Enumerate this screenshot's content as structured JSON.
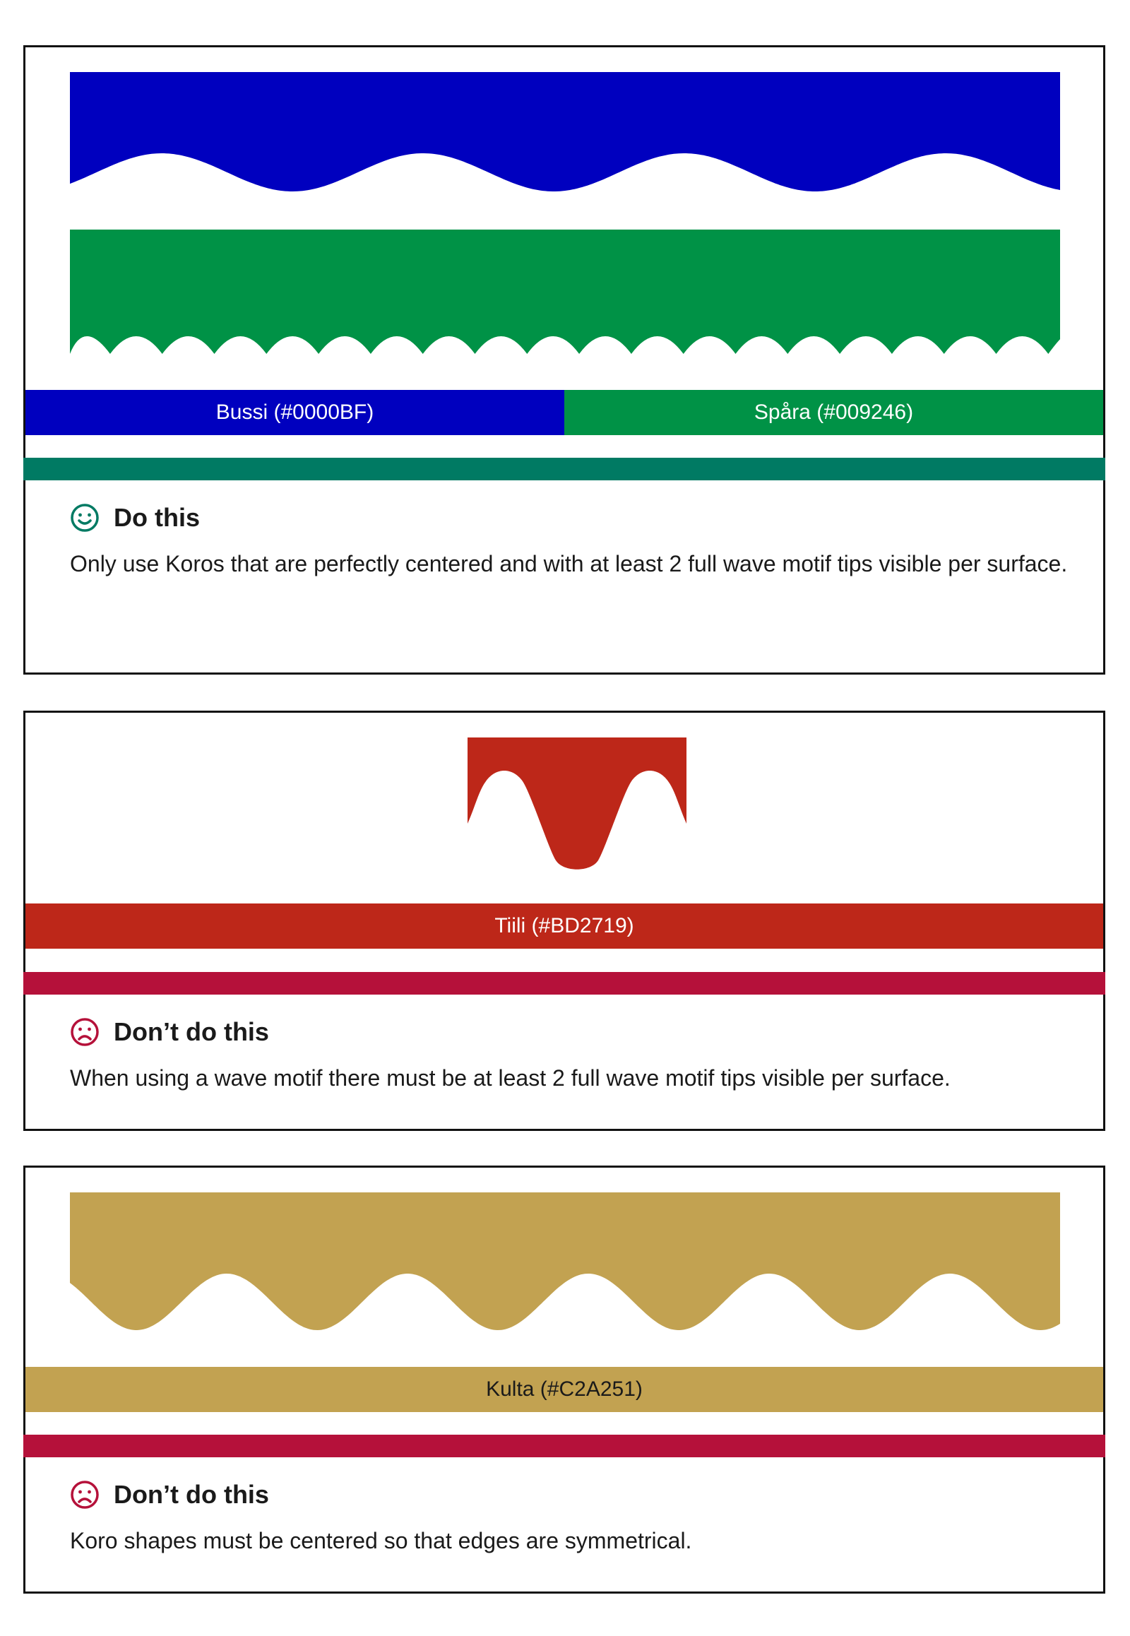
{
  "colors": {
    "bussi": "#0000BF",
    "spara": "#009246",
    "tiili": "#BD2719",
    "kulta": "#C2A251",
    "do_accent": "#007A63",
    "dont_accent": "#B5113A",
    "border": "#111111"
  },
  "cards": [
    {
      "verdict": "Do this",
      "icon": "smiley-icon",
      "description": "Only use Koros that are perfectly centered and with at least 2 full wave motif tips visible per surface.",
      "swatches": [
        "Bussi (#0000BF)",
        "Spåra (#009246)"
      ]
    },
    {
      "verdict": "Don’t do this",
      "icon": "frown-icon",
      "description": "When using a wave motif there must be at least 2 full wave motif tips visible per surface.",
      "swatches": [
        "Tiili (#BD2719)"
      ]
    },
    {
      "verdict": "Don’t do this",
      "icon": "frown-icon",
      "description": "Koro shapes must be centered so that edges are symmetrical.",
      "swatches": [
        "Kulta (#C2A251)"
      ]
    }
  ]
}
